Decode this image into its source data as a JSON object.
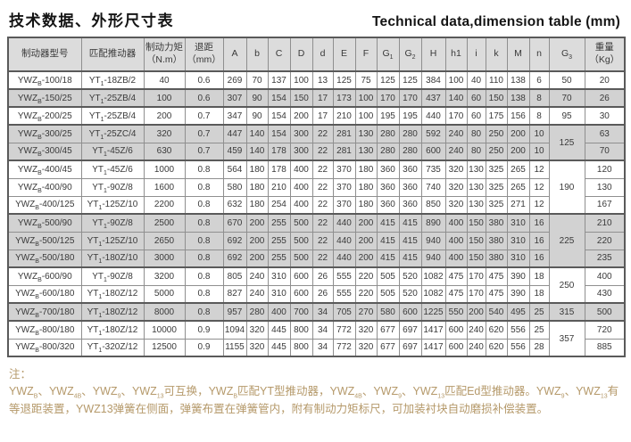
{
  "titles": {
    "zh": "技术数据、外形尺寸表",
    "en": "Technical data,dimension table (mm)"
  },
  "colors": {
    "header_bg": "#dcdcdc",
    "row_shade": "#d2d2d2",
    "border": "#8f8f8f",
    "border_strong": "#5a5a5a",
    "note_text": "#b5996a",
    "title_text": "#141414"
  },
  "table": {
    "headers": [
      "制动器型号",
      "匹配推动器",
      "制动力矩\n（N.m）",
      "退距\n（mm）",
      "A",
      "b",
      "C",
      "D",
      "d",
      "E",
      "F",
      "G_{1}",
      "G_{2}",
      "H",
      "h1",
      "i",
      "k",
      "M",
      "n",
      "G_{3}",
      "重量\n（Kg）"
    ],
    "rows": [
      {
        "cells": [
          "YWZ_{B}-100/18",
          "YT_{1}-18ZB/2",
          "40",
          "0.6",
          "269",
          "70",
          "137",
          "100",
          "13",
          "125",
          "75",
          "125",
          "125",
          "384",
          "100",
          "40",
          "110",
          "138",
          "6"
        ],
        "weight": "20"
      },
      {
        "cells": [
          "YWZ_{B}-150/25",
          "YT_{1}-25ZB/4",
          "100",
          "0.6",
          "307",
          "90",
          "154",
          "150",
          "17",
          "173",
          "100",
          "170",
          "170",
          "437",
          "140",
          "60",
          "150",
          "138",
          "8"
        ],
        "weight": "26"
      },
      {
        "cells": [
          "YWZ_{B}-200/25",
          "YT_{1}-25ZB/4",
          "200",
          "0.7",
          "347",
          "90",
          "154",
          "200",
          "17",
          "210",
          "100",
          "195",
          "195",
          "440",
          "170",
          "60",
          "175",
          "156",
          "8"
        ],
        "weight": "30"
      },
      {
        "cells": [
          "YWZ_{B}-300/25",
          "YT_{1}-25ZC/4",
          "320",
          "0.7",
          "447",
          "140",
          "154",
          "300",
          "22",
          "281",
          "130",
          "280",
          "280",
          "592",
          "240",
          "80",
          "250",
          "200",
          "10"
        ],
        "weight": "63"
      },
      {
        "cells": [
          "YWZ_{B}-300/45",
          "YT_{1}-45Z/6",
          "630",
          "0.7",
          "459",
          "140",
          "178",
          "300",
          "22",
          "281",
          "130",
          "280",
          "280",
          "600",
          "240",
          "80",
          "250",
          "200",
          "10"
        ],
        "weight": "70"
      },
      {
        "cells": [
          "YWZ_{B}-400/45",
          "YT_{1}-45Z/6",
          "1000",
          "0.8",
          "564",
          "180",
          "178",
          "400",
          "22",
          "370",
          "180",
          "360",
          "360",
          "735",
          "320",
          "130",
          "325",
          "265",
          "12"
        ],
        "weight": "120"
      },
      {
        "cells": [
          "YWZ_{B}-400/90",
          "YT_{1}-90Z/8",
          "1600",
          "0.8",
          "580",
          "180",
          "210",
          "400",
          "22",
          "370",
          "180",
          "360",
          "360",
          "740",
          "320",
          "130",
          "325",
          "265",
          "12"
        ],
        "weight": "130"
      },
      {
        "cells": [
          "YWZ_{B}-400/125",
          "YT_{1}-125Z/10",
          "2200",
          "0.8",
          "632",
          "180",
          "254",
          "400",
          "22",
          "370",
          "180",
          "360",
          "360",
          "850",
          "320",
          "130",
          "325",
          "271",
          "12"
        ],
        "weight": "167"
      },
      {
        "cells": [
          "YWZ_{B}-500/90",
          "YT_{1}-90Z/8",
          "2500",
          "0.8",
          "670",
          "200",
          "255",
          "500",
          "22",
          "440",
          "200",
          "415",
          "415",
          "890",
          "400",
          "150",
          "380",
          "310",
          "16"
        ],
        "weight": "210"
      },
      {
        "cells": [
          "YWZ_{B}-500/125",
          "YT_{1}-125Z/10",
          "2650",
          "0.8",
          "692",
          "200",
          "255",
          "500",
          "22",
          "440",
          "200",
          "415",
          "415",
          "940",
          "400",
          "150",
          "380",
          "310",
          "16"
        ],
        "weight": "220"
      },
      {
        "cells": [
          "YWZ_{B}-500/180",
          "YT_{1}-180Z/10",
          "3000",
          "0.8",
          "692",
          "200",
          "255",
          "500",
          "22",
          "440",
          "200",
          "415",
          "415",
          "940",
          "400",
          "150",
          "380",
          "310",
          "16"
        ],
        "weight": "235"
      },
      {
        "cells": [
          "YWZ_{B}-600/90",
          "YT_{1}-90Z/8",
          "3200",
          "0.8",
          "805",
          "240",
          "310",
          "600",
          "26",
          "555",
          "220",
          "505",
          "520",
          "1082",
          "475",
          "170",
          "475",
          "390",
          "18"
        ],
        "weight": "400"
      },
      {
        "cells": [
          "YWZ_{B}-600/180",
          "YT_{1}-180Z/12",
          "5000",
          "0.8",
          "827",
          "240",
          "310",
          "600",
          "26",
          "555",
          "220",
          "505",
          "520",
          "1082",
          "475",
          "170",
          "475",
          "390",
          "18"
        ],
        "weight": "430"
      },
      {
        "cells": [
          "YWZ_{B}-700/180",
          "YT_{1}-180Z/12",
          "8000",
          "0.8",
          "957",
          "280",
          "400",
          "700",
          "34",
          "705",
          "270",
          "580",
          "600",
          "1225",
          "550",
          "200",
          "540",
          "495",
          "25"
        ],
        "weight": "500"
      },
      {
        "cells": [
          "YWZ_{B}-800/180",
          "YT_{1}-180Z/12",
          "10000",
          "0.9",
          "1094",
          "320",
          "445",
          "800",
          "34",
          "772",
          "320",
          "677",
          "697",
          "1417",
          "600",
          "240",
          "620",
          "556",
          "25"
        ],
        "weight": "720"
      },
      {
        "cells": [
          "YWZ_{B}-800/320",
          "YT_{1}-320Z/12",
          "12500",
          "0.9",
          "1155",
          "320",
          "445",
          "800",
          "34",
          "772",
          "320",
          "677",
          "697",
          "1417",
          "600",
          "240",
          "620",
          "556",
          "28"
        ],
        "weight": "885"
      }
    ],
    "g3_cells": [
      {
        "row": 0,
        "span": 1,
        "value": "50"
      },
      {
        "row": 1,
        "span": 1,
        "value": "70"
      },
      {
        "row": 2,
        "span": 1,
        "value": "95"
      },
      {
        "row": 3,
        "span": 2,
        "value": "125"
      },
      {
        "row": 5,
        "span": 3,
        "value": "190"
      },
      {
        "row": 8,
        "span": 3,
        "value": "225"
      },
      {
        "row": 11,
        "span": 2,
        "value": "250"
      },
      {
        "row": 13,
        "span": 1,
        "value": "315"
      },
      {
        "row": 14,
        "span": 2,
        "value": "357"
      }
    ],
    "shaded_rows": [
      1,
      3,
      4,
      8,
      9,
      10,
      13
    ],
    "group_start_rows": [
      1,
      2,
      3,
      5,
      8,
      11,
      13,
      14
    ]
  },
  "notes": {
    "label": "注：",
    "body": "YWZ_{B}、YWZ_{4B}、YWZ_{9}、YWZ_{13}可互换，YWZ_{B}匹配YT型推动器，YWZ_{4B}、YWZ_{9}、YWZ_{13}匹配Ed型推动器。YWZ_{9}、YWZ_{13}有等退距装置，YWZ13弹簧在侧面，弹簧布置在弹簧管内，附有制动力矩标尺，可加装衬块自动磨损补偿装置。"
  }
}
